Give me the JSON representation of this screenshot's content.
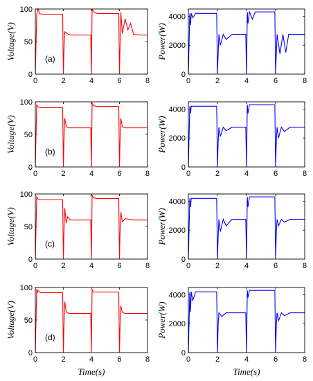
{
  "chart_data": [
    {
      "type": "line",
      "panel_label": "(a)",
      "xlabel": "",
      "ylabel": "Voltage(V)",
      "xlim": [
        0,
        8
      ],
      "ylim": [
        0,
        100
      ],
      "xticks": [
        "0",
        "2",
        "4",
        "6",
        "8"
      ],
      "yticks": [
        "0",
        "50",
        "100"
      ],
      "color": "#ff0000",
      "series": [
        {
          "x": [
            0,
            0.1,
            0.2,
            0.3,
            0.5,
            1,
            1.5,
            1.95,
            2.0,
            2.05,
            2.1,
            2.3,
            2.5,
            3,
            3.5,
            3.95,
            4.0,
            4.05,
            4.15,
            4.3,
            4.5,
            5,
            5.5,
            5.95,
            6.0,
            6.1,
            6.2,
            6.4,
            6.6,
            6.8,
            7,
            7.5,
            8
          ],
          "y": [
            0,
            92,
            100,
            93,
            92,
            92,
            92,
            92,
            0,
            40,
            65,
            62,
            60,
            60,
            60,
            60,
            0,
            100,
            96,
            94,
            93,
            93,
            93,
            93,
            0,
            95,
            62,
            85,
            68,
            78,
            61,
            60,
            60
          ]
        }
      ]
    },
    {
      "type": "line",
      "panel_label": "",
      "xlabel": "",
      "ylabel": "Power(W)",
      "xlim": [
        0,
        8
      ],
      "ylim": [
        0,
        4500
      ],
      "xticks": [
        "0",
        "2",
        "4",
        "6",
        "8"
      ],
      "yticks": [
        "0",
        "2000",
        "4000"
      ],
      "color": "#0000ff",
      "series": [
        {
          "x": [
            0,
            0.1,
            0.15,
            0.2,
            0.3,
            0.5,
            1,
            1.95,
            2.0,
            2.05,
            2.1,
            2.2,
            2.4,
            2.6,
            3,
            3.95,
            4.0,
            4.05,
            4.1,
            4.2,
            4.4,
            4.6,
            5,
            5.95,
            6.0,
            6.1,
            6.3,
            6.5,
            6.7,
            6.9,
            7,
            7.5,
            8
          ],
          "y": [
            0,
            4200,
            3400,
            4200,
            3900,
            4200,
            4200,
            4200,
            0,
            1500,
            2750,
            2000,
            2750,
            2400,
            2750,
            2750,
            0,
            4300,
            3500,
            4300,
            3800,
            4300,
            4300,
            4300,
            0,
            2750,
            1400,
            2750,
            1500,
            2750,
            2750,
            2750,
            2750
          ]
        }
      ]
    },
    {
      "type": "line",
      "panel_label": "(b)",
      "xlabel": "",
      "ylabel": "Voltage(V)",
      "xlim": [
        0,
        8
      ],
      "ylim": [
        0,
        100
      ],
      "xticks": [
        "0",
        "2",
        "4",
        "6",
        "8"
      ],
      "yticks": [
        "0",
        "50",
        "100"
      ],
      "color": "#ff0000",
      "series": [
        {
          "x": [
            0,
            0.1,
            0.2,
            0.4,
            1,
            1.95,
            2.0,
            2.05,
            2.1,
            2.2,
            2.4,
            3,
            3.95,
            4.0,
            4.05,
            4.15,
            4.4,
            5,
            5.95,
            6.0,
            6.05,
            6.1,
            6.2,
            6.4,
            7,
            8
          ],
          "y": [
            0,
            95,
            92,
            91,
            91,
            91,
            0,
            45,
            75,
            62,
            60,
            60,
            60,
            0,
            98,
            94,
            93,
            93,
            93,
            0,
            45,
            75,
            62,
            60,
            60,
            60
          ]
        }
      ]
    },
    {
      "type": "line",
      "panel_label": "",
      "xlabel": "",
      "ylabel": "Power(W)",
      "xlim": [
        0,
        8
      ],
      "ylim": [
        0,
        4500
      ],
      "xticks": [
        "0",
        "2",
        "4",
        "6",
        "8"
      ],
      "yticks": [
        "0",
        "2000",
        "4000"
      ],
      "color": "#0000ff",
      "series": [
        {
          "x": [
            0,
            0.1,
            0.15,
            0.2,
            0.5,
            1,
            1.95,
            2.0,
            2.05,
            2.1,
            2.2,
            2.4,
            2.6,
            3,
            3.95,
            4.0,
            4.05,
            4.1,
            4.2,
            4.5,
            5,
            5.95,
            6.0,
            6.05,
            6.1,
            6.2,
            6.4,
            6.6,
            7,
            8
          ],
          "y": [
            0,
            4200,
            3700,
            4200,
            4200,
            4200,
            4200,
            0,
            1800,
            2750,
            2100,
            2750,
            2500,
            2750,
            2750,
            0,
            4300,
            3700,
            4300,
            4300,
            4300,
            4300,
            0,
            1800,
            2750,
            2000,
            2750,
            2450,
            2750,
            2750
          ]
        }
      ]
    },
    {
      "type": "line",
      "panel_label": "(c)",
      "xlabel": "",
      "ylabel": "Voltage(V)",
      "xlim": [
        0,
        8
      ],
      "ylim": [
        0,
        100
      ],
      "xticks": [
        "0",
        "2",
        "4",
        "6",
        "8"
      ],
      "yticks": [
        "0",
        "50",
        "100"
      ],
      "color": "#ff0000",
      "series": [
        {
          "x": [
            0,
            0.1,
            0.2,
            0.4,
            1,
            1.95,
            2.0,
            2.05,
            2.1,
            2.2,
            2.3,
            2.5,
            3,
            3.95,
            4.0,
            4.05,
            4.15,
            4.4,
            5,
            5.95,
            6.0,
            6.05,
            6.1,
            6.2,
            6.4,
            7,
            8
          ],
          "y": [
            0,
            96,
            92,
            91,
            91,
            91,
            0,
            45,
            78,
            55,
            65,
            60,
            60,
            60,
            0,
            98,
            94,
            93,
            93,
            93,
            0,
            45,
            72,
            57,
            62,
            60,
            60
          ]
        }
      ]
    },
    {
      "type": "line",
      "panel_label": "",
      "xlabel": "",
      "ylabel": "Power(W)",
      "xlim": [
        0,
        8
      ],
      "ylim": [
        0,
        4500
      ],
      "xticks": [
        "0",
        "2",
        "4",
        "6",
        "8"
      ],
      "yticks": [
        "0",
        "2000",
        "4000"
      ],
      "color": "#0000ff",
      "series": [
        {
          "x": [
            0,
            0.1,
            0.15,
            0.2,
            0.5,
            1,
            1.95,
            2.0,
            2.05,
            2.1,
            2.2,
            2.4,
            2.6,
            3,
            3.95,
            4.0,
            4.05,
            4.1,
            4.2,
            4.5,
            5,
            5.95,
            6.0,
            6.05,
            6.1,
            6.2,
            6.4,
            6.6,
            7,
            8
          ],
          "y": [
            0,
            4200,
            3600,
            4200,
            4200,
            4200,
            4200,
            0,
            1600,
            2750,
            1900,
            2750,
            2300,
            2750,
            2750,
            0,
            4300,
            3600,
            4300,
            4300,
            4300,
            4300,
            0,
            1900,
            2750,
            2300,
            2750,
            2550,
            2750,
            2750
          ]
        }
      ]
    },
    {
      "type": "line",
      "panel_label": "(d)",
      "xlabel": "Time(s)",
      "ylabel": "Voltage(V)",
      "xlim": [
        0,
        8
      ],
      "ylim": [
        0,
        100
      ],
      "xticks": [
        "0",
        "2",
        "4",
        "6",
        "8"
      ],
      "yticks": [
        "0",
        "50",
        "100"
      ],
      "color": "#ff0000",
      "series": [
        {
          "x": [
            0,
            0.1,
            0.15,
            0.2,
            0.4,
            1,
            1.95,
            2.0,
            2.05,
            2.1,
            2.2,
            2.4,
            3,
            3.95,
            4.0,
            4.05,
            4.15,
            4.4,
            5,
            5.95,
            6.0,
            6.05,
            6.1,
            6.2,
            6.4,
            7,
            8
          ],
          "y": [
            0,
            98,
            93,
            95,
            92,
            92,
            92,
            0,
            45,
            78,
            63,
            60,
            60,
            60,
            0,
            97,
            93,
            93,
            93,
            93,
            0,
            45,
            72,
            62,
            60,
            60,
            60
          ]
        }
      ]
    },
    {
      "type": "line",
      "panel_label": "",
      "xlabel": "Time(s)",
      "ylabel": "Power(W)",
      "xlim": [
        0,
        8
      ],
      "ylim": [
        0,
        4500
      ],
      "xticks": [
        "0",
        "2",
        "4",
        "6",
        "8"
      ],
      "yticks": [
        "0",
        "2000",
        "4000"
      ],
      "color": "#0000ff",
      "series": [
        {
          "x": [
            0,
            0.1,
            0.15,
            0.2,
            0.3,
            0.5,
            1,
            1.95,
            2.0,
            2.05,
            2.1,
            2.3,
            2.6,
            3,
            3.95,
            4.0,
            4.05,
            4.1,
            4.2,
            4.5,
            5,
            5.95,
            6.0,
            6.05,
            6.1,
            6.2,
            6.4,
            6.6,
            7,
            8
          ],
          "y": [
            0,
            4200,
            2800,
            4200,
            3600,
            4200,
            4200,
            4200,
            0,
            2000,
            2750,
            2500,
            2750,
            2750,
            2750,
            0,
            4300,
            3800,
            4300,
            4300,
            4300,
            4300,
            0,
            1900,
            2750,
            2200,
            2750,
            2550,
            2750,
            2750
          ]
        }
      ]
    }
  ]
}
